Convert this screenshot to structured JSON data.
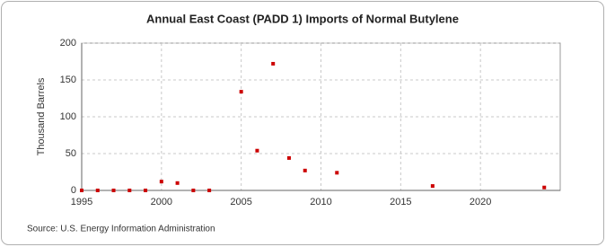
{
  "chart_data": {
    "type": "scatter",
    "title": "Annual East Coast (PADD 1) Imports of Normal Butylene",
    "y_label": "Thousand Barrels",
    "source": "Source: U.S. Energy Information Administration",
    "x": [
      1995,
      1996,
      1997,
      1998,
      1999,
      2000,
      2001,
      2002,
      2003,
      2005,
      2006,
      2007,
      2008,
      2009,
      2011,
      2017,
      2024
    ],
    "values": [
      0,
      0,
      0,
      0,
      0,
      12,
      10,
      0,
      0,
      134,
      54,
      172,
      44,
      27,
      24,
      6,
      4
    ],
    "color": "#cc0000",
    "xlim": [
      1995,
      2025
    ],
    "xticks": [
      1995,
      2000,
      2005,
      2010,
      2015,
      2020
    ],
    "ylim": [
      0,
      200
    ],
    "yticks": [
      0,
      50,
      100,
      150,
      200
    ],
    "grid": true
  }
}
